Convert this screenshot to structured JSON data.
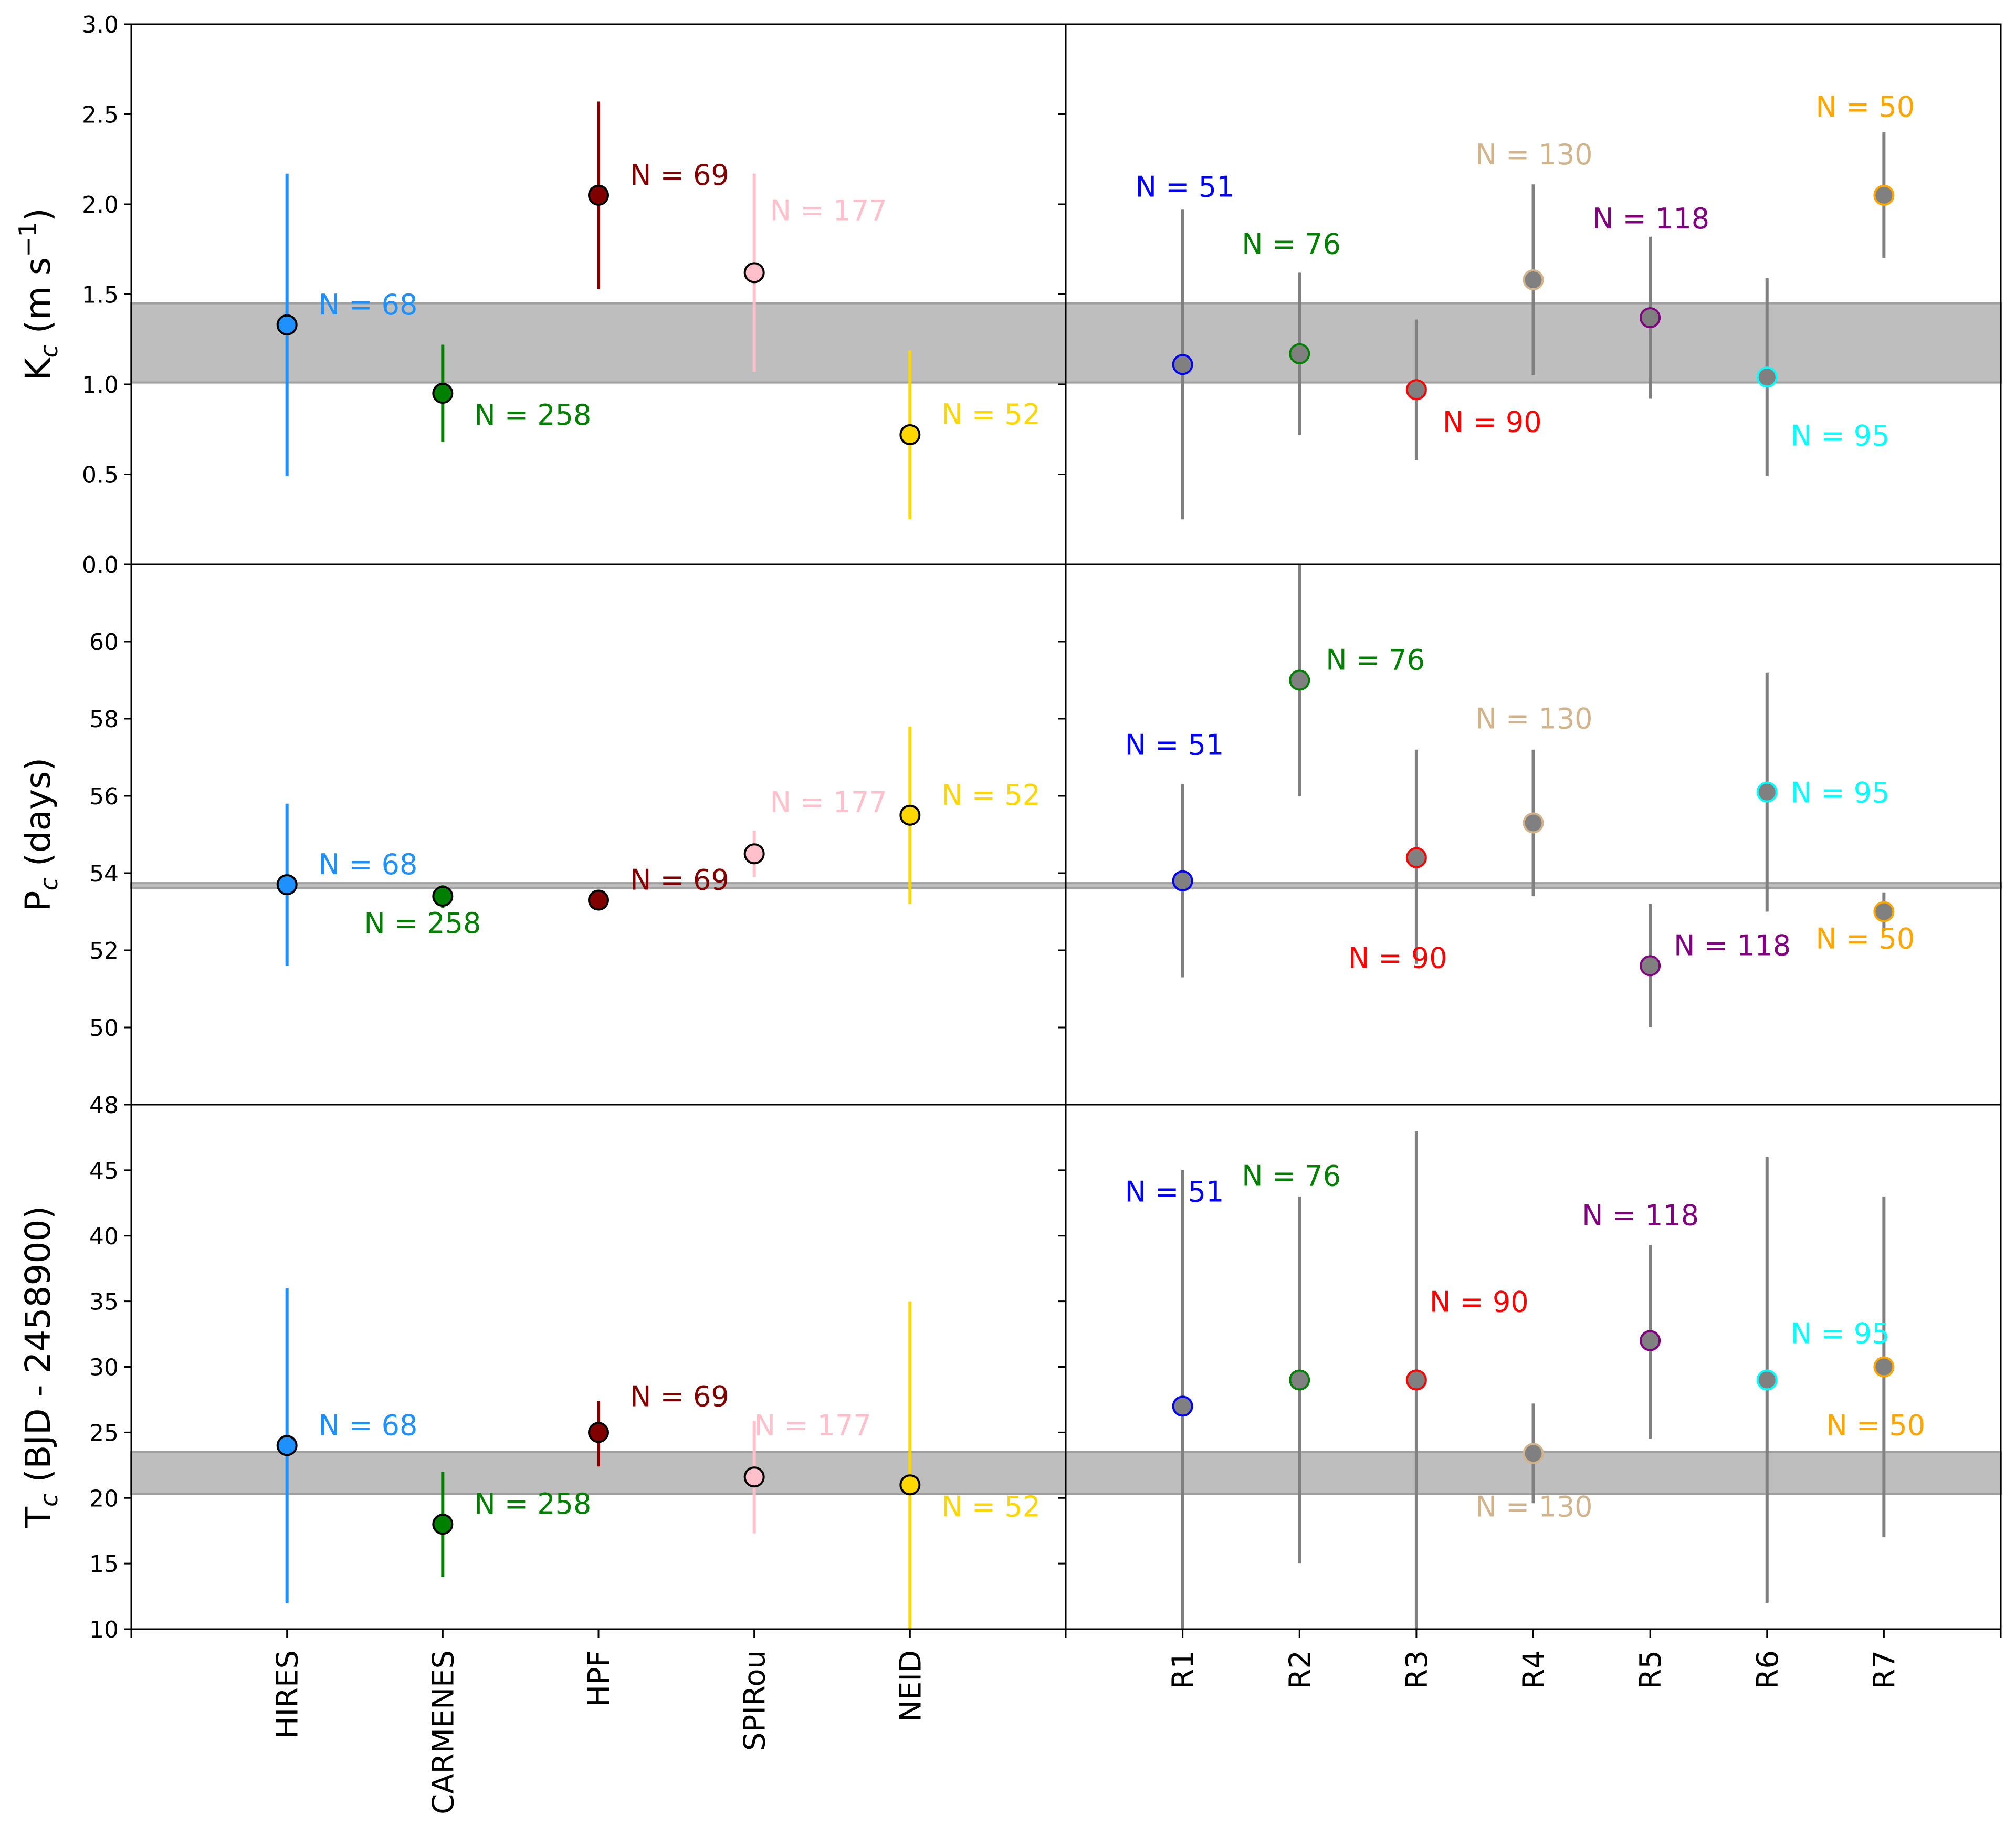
{
  "chart_data": {
    "type": "scatter",
    "layout": "3 rows x 2 columns, shared rows",
    "left_categories": [
      "HIRES",
      "CARMENES",
      "HPF",
      "SPIRou",
      "NEID"
    ],
    "right_categories": [
      "R1",
      "R2",
      "R3",
      "R4",
      "R5",
      "R6",
      "R7"
    ],
    "left_colors": [
      "#1e90ff",
      "#008000",
      "#800000",
      "#ffc0cb",
      "#ffd700"
    ],
    "right_edge_colors": [
      "#0000ff",
      "#008000",
      "#ff0000",
      "#d2b48c",
      "#800080",
      "#00ffff",
      "#ffa500"
    ],
    "right_marker_face": "#808080",
    "right_errorbar_color": "#808080",
    "band_color": "#bebebe",
    "left_N": [
      68,
      258,
      69,
      177,
      52
    ],
    "right_N": [
      51,
      76,
      90,
      130,
      118,
      95,
      50
    ],
    "rows": [
      {
        "ylabel": "K_c (m s^-1)",
        "ylabel_main": "K",
        "ylabel_sub": "c",
        "ylabel_rest": " (m s",
        "ylabel_sup": "−1",
        "ylabel_close": ")",
        "ylim": [
          0.0,
          3.0
        ],
        "yticks": [
          0.0,
          0.5,
          1.0,
          1.5,
          2.0,
          2.5,
          3.0
        ],
        "ytick_labels": [
          "0.0",
          "0.5",
          "1.0",
          "1.5",
          "2.0",
          "2.5",
          "3.0"
        ],
        "band": [
          1.01,
          1.45
        ],
        "left": {
          "values": [
            1.33,
            0.95,
            2.05,
            1.62,
            0.72
          ],
          "lower": [
            0.49,
            0.68,
            1.53,
            1.07,
            0.25
          ],
          "upper": [
            2.17,
            1.22,
            2.57,
            2.17,
            1.19
          ]
        },
        "right": {
          "values": [
            1.11,
            1.17,
            0.97,
            1.58,
            1.37,
            1.04,
            2.05
          ],
          "lower": [
            0.25,
            0.72,
            0.58,
            1.05,
            0.92,
            0.49,
            1.7
          ],
          "upper": [
            1.97,
            1.62,
            1.36,
            2.11,
            1.82,
            1.59,
            2.4
          ]
        }
      },
      {
        "ylabel": "P_c (days)",
        "ylabel_main": "P",
        "ylabel_sub": "c",
        "ylabel_rest": " (days)",
        "ylabel_sup": "",
        "ylabel_close": "",
        "ylim": [
          48,
          62
        ],
        "yticks": [
          48,
          50,
          52,
          54,
          56,
          58,
          60
        ],
        "ytick_labels": [
          "48",
          "50",
          "52",
          "54",
          "56",
          "58",
          "60"
        ],
        "band": [
          53.62,
          53.74
        ],
        "left": {
          "values": [
            53.7,
            53.4,
            53.3,
            54.5,
            55.5
          ],
          "lower": [
            51.6,
            53.1,
            53.2,
            53.9,
            53.2
          ],
          "upper": [
            55.8,
            53.7,
            53.4,
            55.1,
            57.8
          ]
        },
        "right": {
          "values": [
            53.8,
            59.0,
            54.4,
            55.3,
            51.6,
            56.1,
            53.0
          ],
          "lower": [
            51.3,
            56.0,
            51.65,
            53.4,
            50.0,
            53.0,
            52.5
          ],
          "upper": [
            56.3,
            62.0,
            57.2,
            57.2,
            53.2,
            59.2,
            53.5
          ]
        }
      },
      {
        "ylabel": "T_c (BJD - 2458900)",
        "ylabel_main": "T",
        "ylabel_sub": "c",
        "ylabel_rest": " (BJD - 2458900)",
        "ylabel_sup": "",
        "ylabel_close": "",
        "ylim": [
          10,
          50
        ],
        "yticks": [
          10,
          15,
          20,
          25,
          30,
          35,
          40,
          45
        ],
        "ytick_labels": [
          "10",
          "15",
          "20",
          "25",
          "30",
          "35",
          "40",
          "45"
        ],
        "band": [
          20.3,
          23.5
        ],
        "left": {
          "values": [
            24.0,
            18.0,
            25.0,
            21.6,
            21.0
          ],
          "lower": [
            12.0,
            14.0,
            22.4,
            17.3,
            10.0
          ],
          "upper": [
            36.0,
            22.0,
            27.4,
            25.9,
            35.0
          ]
        },
        "right": {
          "values": [
            27.0,
            29.0,
            29.0,
            23.4,
            32.0,
            29.0,
            30.0
          ],
          "lower": [
            10.0,
            15.0,
            10.0,
            19.6,
            24.5,
            12.0,
            17.0
          ],
          "upper": [
            45.0,
            43.0,
            48.0,
            27.2,
            39.3,
            46.0,
            43.0
          ]
        }
      }
    ],
    "grid": false,
    "legend": "none"
  }
}
